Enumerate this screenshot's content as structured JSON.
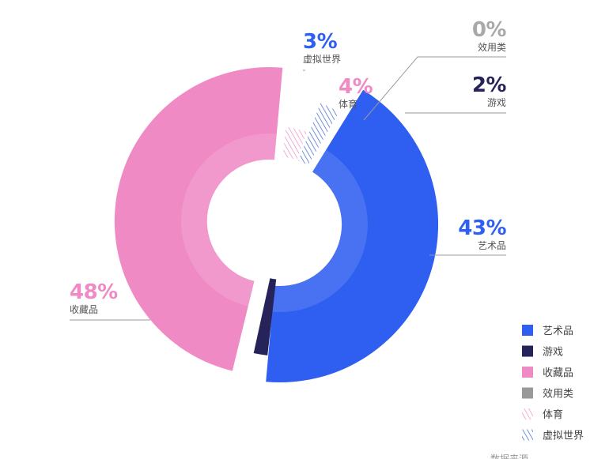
{
  "chart_data": {
    "type": "pie",
    "variant": "donut",
    "slices": [
      {
        "label": "艺术品",
        "value": 43,
        "display": "43%",
        "color": "#2f5ff0",
        "fill": "solid"
      },
      {
        "label": "游戏",
        "value": 2,
        "display": "2%",
        "color": "#26235a",
        "fill": "solid"
      },
      {
        "label": "收藏品",
        "value": 48,
        "display": "48%",
        "color": "#ef8ac5",
        "fill": "solid"
      },
      {
        "label": "效用类",
        "value": 0,
        "display": "0%",
        "color": "#999999",
        "fill": "solid"
      },
      {
        "label": "体育",
        "value": 4,
        "display": "4%",
        "color": "#ef8ac5",
        "fill": "hatched"
      },
      {
        "label": "虚拟世界",
        "value": 3,
        "display": "3%",
        "color": "#3b63c9",
        "fill": "hatched"
      }
    ],
    "legend": [
      "艺术品",
      "游戏",
      "收藏品",
      "效用类",
      "体育",
      "虚拟世界"
    ],
    "legend_position": "bottom-right",
    "footer_partial": "数据来源"
  }
}
